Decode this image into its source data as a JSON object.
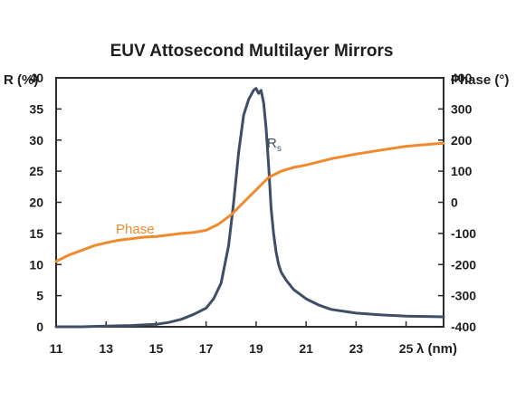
{
  "chart_data": {
    "type": "line",
    "title": "EUV Attosecond Multilayer Mirrors",
    "xlabel": "λ (nm)",
    "ylabel_left": "R (%)",
    "ylabel_right": "Phase (°)",
    "xlim": [
      11,
      26.5
    ],
    "ylim_left": [
      0,
      40
    ],
    "ylim_right": [
      -400,
      400
    ],
    "x_ticks": [
      "11",
      "13",
      "15",
      "17",
      "19",
      "21",
      "23",
      "25"
    ],
    "y_ticks_left": [
      "0",
      "5",
      "10",
      "15",
      "20",
      "25",
      "30",
      "35",
      "40"
    ],
    "y_ticks_right": [
      "-400",
      "-300",
      "-200",
      "-100",
      "0",
      "100",
      "200",
      "300",
      "400"
    ],
    "grid": false,
    "series": [
      {
        "name": "Rs",
        "label_main": "R",
        "label_sub": "s",
        "axis": "left",
        "color": "#3d4e66",
        "x": [
          11,
          12,
          13,
          14,
          14.5,
          15,
          15.5,
          16,
          16.5,
          17,
          17.3,
          17.6,
          17.9,
          18.1,
          18.3,
          18.5,
          18.7,
          18.9,
          19.0,
          19.1,
          19.2,
          19.3,
          19.4,
          19.5,
          19.6,
          19.7,
          19.8,
          19.9,
          20.0,
          20.2,
          20.5,
          21,
          21.5,
          22,
          23,
          24,
          25,
          26.5
        ],
        "y": [
          0,
          0,
          0.1,
          0.2,
          0.3,
          0.4,
          0.7,
          1.2,
          2,
          3,
          4.5,
          7,
          13,
          20,
          28,
          34,
          36.5,
          38,
          38.3,
          37.5,
          38,
          36,
          32,
          26,
          19,
          15,
          12,
          10,
          8.8,
          7.5,
          6,
          4.5,
          3.5,
          2.8,
          2.2,
          1.9,
          1.7,
          1.6
        ]
      },
      {
        "name": "Phase",
        "axis": "right",
        "color": "#f08a2c",
        "x": [
          11,
          11.5,
          12,
          12.5,
          13,
          13.5,
          14,
          14.5,
          15,
          15.5,
          16,
          16.5,
          17,
          17.5,
          18,
          18.5,
          19,
          19.5,
          20,
          20.5,
          21,
          22,
          23,
          24,
          25,
          26,
          26.5
        ],
        "y": [
          -190,
          -170,
          -155,
          -140,
          -130,
          -122,
          -117,
          -112,
          -110,
          -105,
          -100,
          -97,
          -90,
          -70,
          -40,
          0,
          40,
          80,
          100,
          112,
          120,
          140,
          155,
          168,
          180,
          187,
          190
        ]
      }
    ]
  }
}
